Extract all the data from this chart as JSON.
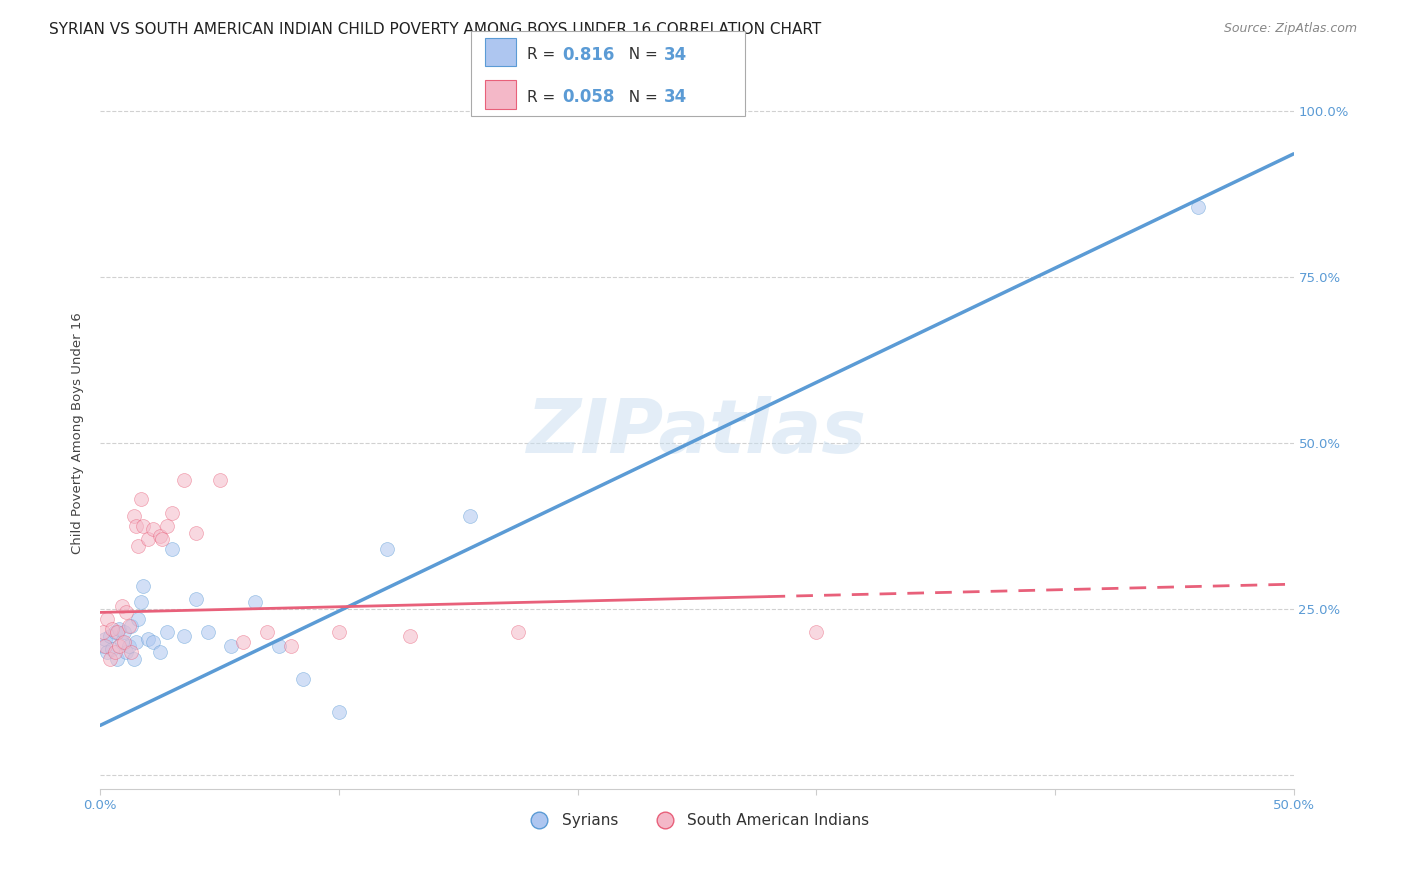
{
  "title": "SYRIAN VS SOUTH AMERICAN INDIAN CHILD POVERTY AMONG BOYS UNDER 16 CORRELATION CHART",
  "source": "Source: ZipAtlas.com",
  "ylabel": "Child Poverty Among Boys Under 16",
  "xlim": [
    0.0,
    0.5
  ],
  "ylim": [
    -0.02,
    1.05
  ],
  "xticks": [
    0.0,
    0.1,
    0.2,
    0.3,
    0.4,
    0.5
  ],
  "xtick_labels": [
    "0.0%",
    "",
    "",
    "",
    "",
    "50.0%"
  ],
  "yticks": [
    0.0,
    0.25,
    0.5,
    0.75,
    1.0
  ],
  "ytick_labels": [
    "",
    "25.0%",
    "50.0%",
    "75.0%",
    "100.0%"
  ],
  "watermark": "ZIPatlas",
  "legend_labels": [
    "Syrians",
    "South American Indians"
  ],
  "syrians_x": [
    0.001,
    0.002,
    0.003,
    0.004,
    0.005,
    0.006,
    0.007,
    0.008,
    0.009,
    0.01,
    0.011,
    0.012,
    0.013,
    0.014,
    0.015,
    0.016,
    0.017,
    0.018,
    0.02,
    0.022,
    0.025,
    0.028,
    0.03,
    0.035,
    0.04,
    0.045,
    0.055,
    0.065,
    0.075,
    0.085,
    0.1,
    0.12,
    0.155,
    0.46
  ],
  "syrians_y": [
    0.195,
    0.205,
    0.185,
    0.21,
    0.19,
    0.215,
    0.175,
    0.22,
    0.2,
    0.215,
    0.185,
    0.195,
    0.225,
    0.175,
    0.2,
    0.235,
    0.26,
    0.285,
    0.205,
    0.2,
    0.185,
    0.215,
    0.34,
    0.21,
    0.265,
    0.215,
    0.195,
    0.26,
    0.195,
    0.145,
    0.095,
    0.34,
    0.39,
    0.855
  ],
  "sa_indians_x": [
    0.001,
    0.002,
    0.003,
    0.004,
    0.005,
    0.006,
    0.007,
    0.008,
    0.009,
    0.01,
    0.011,
    0.012,
    0.013,
    0.014,
    0.015,
    0.016,
    0.017,
    0.018,
    0.02,
    0.022,
    0.025,
    0.026,
    0.028,
    0.03,
    0.035,
    0.04,
    0.05,
    0.06,
    0.07,
    0.08,
    0.1,
    0.13,
    0.175,
    0.3
  ],
  "sa_indians_y": [
    0.215,
    0.195,
    0.235,
    0.175,
    0.22,
    0.185,
    0.215,
    0.195,
    0.255,
    0.2,
    0.245,
    0.225,
    0.185,
    0.39,
    0.375,
    0.345,
    0.415,
    0.375,
    0.355,
    0.37,
    0.36,
    0.355,
    0.375,
    0.395,
    0.445,
    0.365,
    0.445,
    0.2,
    0.215,
    0.195,
    0.215,
    0.21,
    0.215,
    0.215
  ],
  "blue_color": "#5b9bd5",
  "pink_color": "#e8607a",
  "blue_fill": "#aec6f0",
  "pink_fill": "#f4b8c8",
  "blue_line_slope": 1.72,
  "blue_line_intercept": 0.075,
  "pink_line_solid_end": 0.28,
  "pink_line_slope": 0.085,
  "pink_line_intercept": 0.245,
  "background_color": "#ffffff",
  "grid_color": "#cccccc",
  "title_fontsize": 11,
  "axis_label_fontsize": 9.5,
  "tick_fontsize": 9.5,
  "marker_size": 100,
  "marker_alpha": 0.55
}
